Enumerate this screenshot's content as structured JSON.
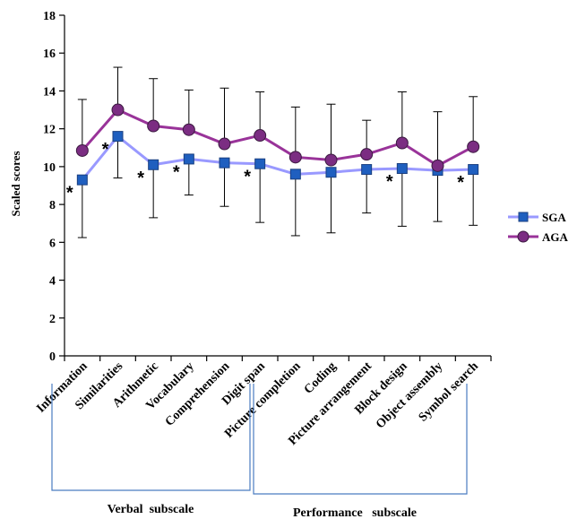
{
  "chart_data": {
    "type": "line",
    "ylabel": "Scaled scores",
    "ylim": [
      0,
      18
    ],
    "yticks": [
      0,
      2,
      4,
      6,
      8,
      10,
      12,
      14,
      16,
      18
    ],
    "categories": [
      "Information",
      "Similarities",
      "Arithmetic",
      "Vocabulary",
      "Comprehension",
      "Digit span",
      "Picture completion",
      "Coding",
      "Picture arrangement",
      "Block design",
      "Object assembly",
      "Symbol search"
    ],
    "series": [
      {
        "name": "SGA",
        "color": "#9999ff",
        "marker": "square",
        "marker_color": "#1f5fbf",
        "values": [
          9.3,
          11.6,
          10.1,
          10.4,
          10.2,
          10.15,
          9.6,
          9.7,
          9.85,
          9.9,
          9.8,
          9.85
        ],
        "error_low": [
          6.25,
          9.4,
          7.3,
          8.5,
          7.9,
          7.05,
          6.35,
          6.5,
          7.55,
          6.85,
          7.1,
          6.9
        ]
      },
      {
        "name": "AGA",
        "color": "#993399",
        "marker": "circle",
        "marker_color": "#7b2d82",
        "values": [
          10.85,
          13.0,
          12.15,
          11.95,
          11.2,
          11.65,
          10.5,
          10.35,
          10.65,
          11.25,
          10.05,
          11.05
        ],
        "error_high": [
          13.55,
          15.25,
          14.65,
          14.05,
          14.15,
          13.95,
          13.15,
          13.3,
          12.45,
          13.95,
          12.9,
          13.7
        ]
      }
    ],
    "significance_marker": "*",
    "significant_categories": [
      "Information",
      "Similarities",
      "Arithmetic",
      "Vocabulary",
      "Digit span",
      "Block design",
      "Symbol search"
    ],
    "legend_position": "right",
    "grid": false,
    "groups": [
      {
        "label": "Verbal  subscale",
        "categories": [
          "Information",
          "Similarities",
          "Arithmetic",
          "Vocabulary",
          "Comprehension",
          "Digit span"
        ]
      },
      {
        "label": "Performance   subscale",
        "categories": [
          "Picture completion",
          "Coding",
          "Picture arrangement",
          "Block design",
          "Object assembly",
          "Symbol search"
        ]
      }
    ]
  }
}
